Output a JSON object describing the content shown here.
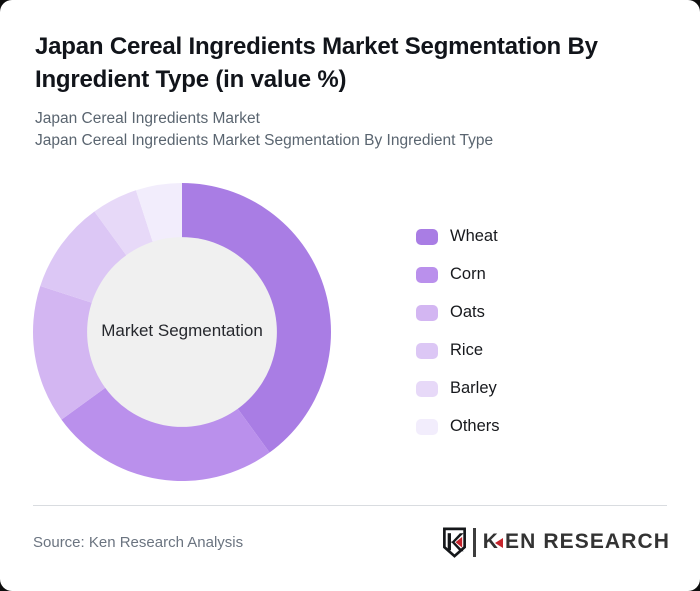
{
  "page": {
    "background_color": "#0d0d0d",
    "card_color": "#ffffff"
  },
  "header": {
    "title_line1": "Japan Cereal Ingredients Market Segmentation By",
    "title_line2": "Ingredient Type (in value %)",
    "subtitle_line1": "Japan Cereal Ingredients Market",
    "subtitle_line2": "Japan Cereal Ingredients Market Segmentation By Ingredient Type"
  },
  "chart_data": {
    "type": "pie",
    "variant": "donut",
    "title": "Japan Cereal Ingredients Market Segmentation By Ingredient Type (in value %)",
    "unit": "value %",
    "center_label": "Market Segmentation",
    "center_fill": "#f0f0f0",
    "categories": [
      "Wheat",
      "Corn",
      "Oats",
      "Rice",
      "Barley",
      "Others"
    ],
    "values": [
      40,
      25,
      15,
      10,
      5,
      5
    ],
    "colors": [
      "#a97de4",
      "#ba90ec",
      "#d3b6f2",
      "#dcc7f5",
      "#e7d9f8",
      "#f2edfc"
    ],
    "start_angle_deg": 0,
    "direction": "clockwise",
    "inner_radius_ratio": 0.63,
    "legend_position": "right",
    "grid": false
  },
  "footer": {
    "source": "Source: Ken Research Analysis",
    "brand_initial": "K",
    "brand_rest": "EN RESEARCH"
  }
}
